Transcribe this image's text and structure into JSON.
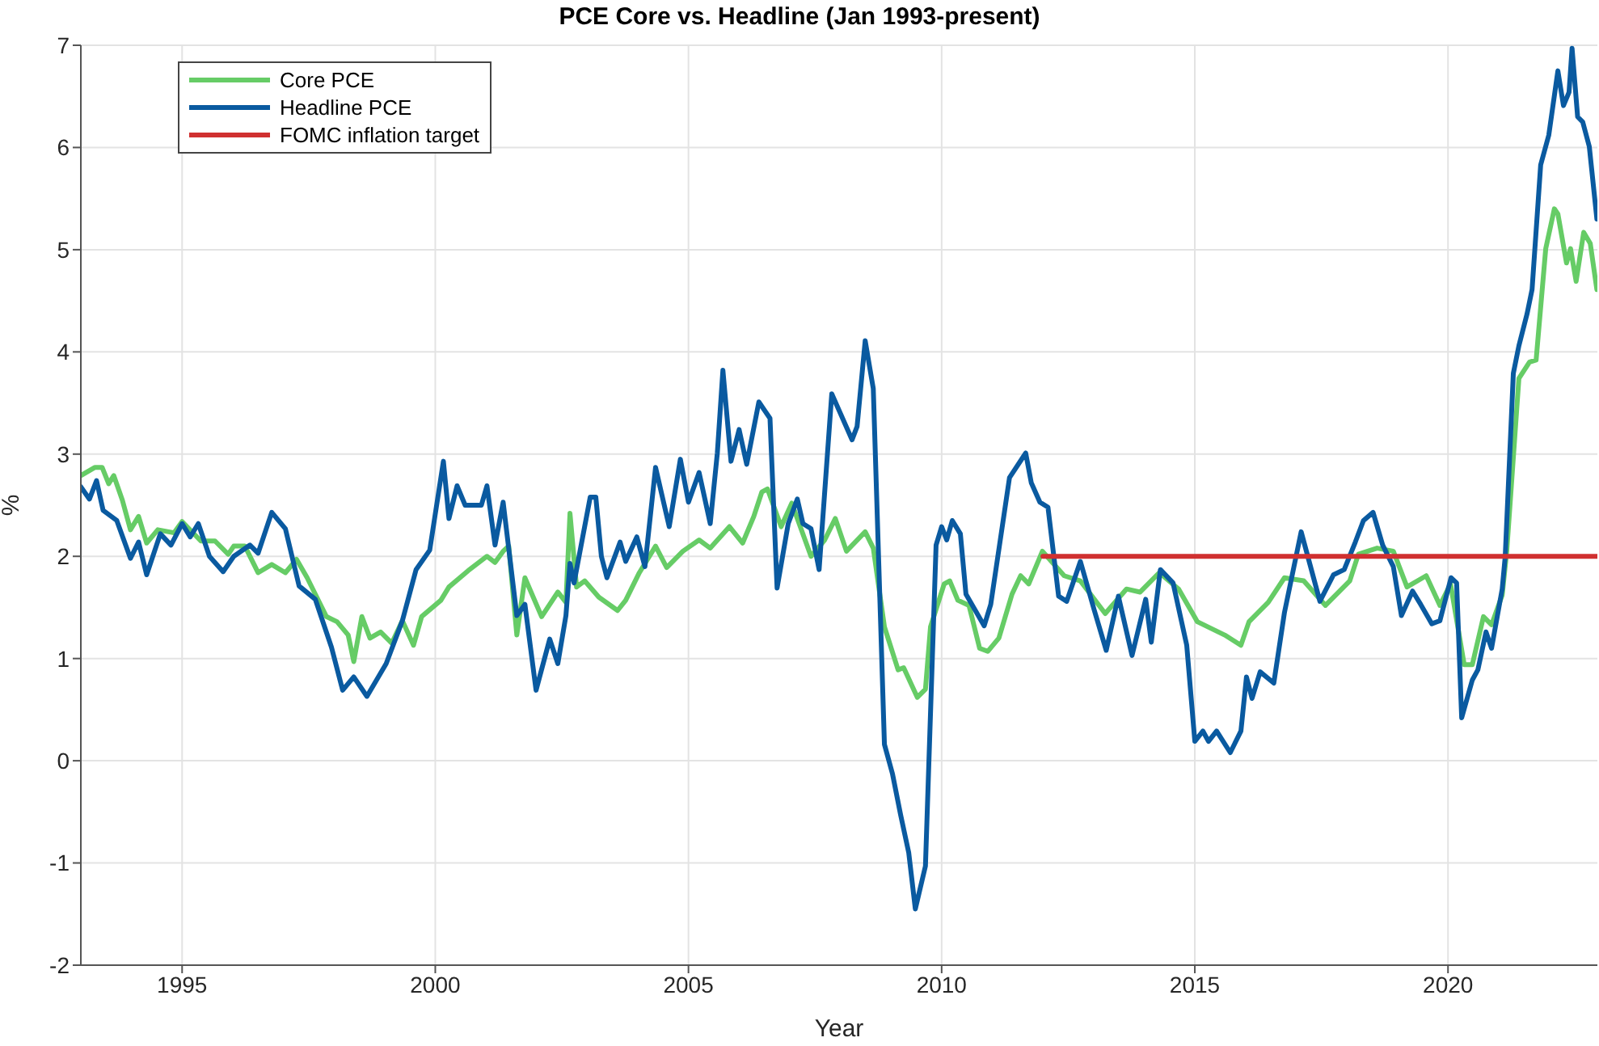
{
  "chart_data": {
    "type": "line",
    "title": "PCE Core vs. Headline (Jan 1993-present)",
    "xlabel": "Year",
    "ylabel": "%",
    "xlim": [
      1993,
      2022.95
    ],
    "xticks": [
      1995,
      2000,
      2005,
      2010,
      2015,
      2020
    ],
    "ylim": [
      -2,
      7
    ],
    "yticks": [
      -2,
      -1,
      0,
      1,
      2,
      3,
      4,
      5,
      6,
      7
    ],
    "grid": true,
    "legend": "top left",
    "marker": "none",
    "line_style": "solid",
    "series": [
      {
        "name": "Core PCE",
        "color": "#66cc66",
        "x": [
          1993.0,
          1993.28,
          1993.42,
          1993.55,
          1993.65,
          1993.82,
          1993.98,
          1994.14,
          1994.3,
          1994.52,
          1994.84,
          1995.0,
          1995.37,
          1995.65,
          1995.91,
          1996.02,
          1996.24,
          1996.5,
          1996.77,
          1997.04,
          1997.26,
          1997.47,
          1997.85,
          1998.06,
          1998.28,
          1998.39,
          1998.55,
          1998.71,
          1998.92,
          1999.14,
          1999.35,
          1999.57,
          1999.73,
          2000.11,
          2000.27,
          2000.65,
          2001.02,
          2001.18,
          2001.34,
          2001.45,
          2001.61,
          2001.77,
          2002.1,
          2002.42,
          2002.58,
          2002.66,
          2002.79,
          2002.95,
          2003.23,
          2003.6,
          2003.76,
          2004.03,
          2004.35,
          2004.57,
          2004.89,
          2005.21,
          2005.43,
          2005.81,
          2006.07,
          2006.29,
          2006.45,
          2006.56,
          2006.83,
          2007.04,
          2007.42,
          2007.69,
          2007.9,
          2008.12,
          2008.49,
          2008.65,
          2008.87,
          2009.14,
          2009.25,
          2009.52,
          2009.68,
          2009.78,
          2010.05,
          2010.16,
          2010.32,
          2010.54,
          2010.75,
          2010.91,
          2011.13,
          2011.39,
          2011.56,
          2011.72,
          2011.99,
          2012.42,
          2012.74,
          2013.23,
          2013.65,
          2013.92,
          2014.3,
          2014.68,
          2015.05,
          2015.59,
          2015.91,
          2016.07,
          2016.45,
          2016.77,
          2017.15,
          2017.58,
          2018.06,
          2018.23,
          2018.6,
          2018.92,
          2019.19,
          2019.57,
          2019.84,
          2020.05,
          2020.32,
          2020.48,
          2020.7,
          2020.86,
          2021.07,
          2021.16,
          2021.4,
          2021.61,
          2021.74,
          2021.93,
          2022.1,
          2022.17,
          2022.34,
          2022.42,
          2022.53,
          2022.68,
          2022.81,
          2022.94
        ],
        "values": [
          2.79,
          2.87,
          2.87,
          2.71,
          2.79,
          2.55,
          2.26,
          2.39,
          2.13,
          2.26,
          2.23,
          2.34,
          2.15,
          2.15,
          2.02,
          2.1,
          2.1,
          1.84,
          1.92,
          1.84,
          1.97,
          1.79,
          1.41,
          1.36,
          1.23,
          0.97,
          1.41,
          1.2,
          1.26,
          1.15,
          1.37,
          1.13,
          1.41,
          1.57,
          1.7,
          1.86,
          2.0,
          1.94,
          2.05,
          2.1,
          1.23,
          1.79,
          1.41,
          1.65,
          1.55,
          2.42,
          1.7,
          1.76,
          1.6,
          1.47,
          1.57,
          1.84,
          2.1,
          1.89,
          2.05,
          2.16,
          2.08,
          2.29,
          2.13,
          2.39,
          2.63,
          2.66,
          2.29,
          2.52,
          2.0,
          2.16,
          2.37,
          2.05,
          2.24,
          2.08,
          1.31,
          0.89,
          0.91,
          0.62,
          0.7,
          1.31,
          1.73,
          1.76,
          1.57,
          1.52,
          1.1,
          1.07,
          1.2,
          1.63,
          1.81,
          1.73,
          2.05,
          1.81,
          1.76,
          1.44,
          1.68,
          1.65,
          1.84,
          1.68,
          1.36,
          1.23,
          1.13,
          1.36,
          1.55,
          1.79,
          1.76,
          1.52,
          1.76,
          2.02,
          2.08,
          2.05,
          1.7,
          1.81,
          1.52,
          1.73,
          0.94,
          0.94,
          1.41,
          1.33,
          1.62,
          2.05,
          3.74,
          3.9,
          3.92,
          5.01,
          5.4,
          5.35,
          4.87,
          5.01,
          4.69,
          5.17,
          5.06,
          4.61
        ]
      },
      {
        "name": "Headline PCE",
        "color": "#0a5aa0",
        "x": [
          1993.0,
          1993.17,
          1993.31,
          1993.44,
          1993.71,
          1993.98,
          1994.14,
          1994.3,
          1994.57,
          1994.78,
          1995.0,
          1995.16,
          1995.32,
          1995.54,
          1995.81,
          1996.02,
          1996.34,
          1996.5,
          1996.77,
          1997.04,
          1997.31,
          1997.63,
          1997.95,
          1998.17,
          1998.39,
          1998.65,
          1999.03,
          1999.35,
          1999.62,
          1999.89,
          2000.16,
          2000.27,
          2000.43,
          2000.59,
          2000.91,
          2001.02,
          2001.18,
          2001.34,
          2001.61,
          2001.77,
          2001.99,
          2002.26,
          2002.42,
          2002.58,
          2002.66,
          2002.74,
          2003.06,
          2003.17,
          2003.28,
          2003.39,
          2003.65,
          2003.76,
          2003.98,
          2004.14,
          2004.35,
          2004.62,
          2004.84,
          2005.0,
          2005.21,
          2005.43,
          2005.57,
          2005.68,
          2005.84,
          2006.0,
          2006.15,
          2006.39,
          2006.61,
          2006.75,
          2006.97,
          2007.15,
          2007.26,
          2007.42,
          2007.58,
          2007.83,
          2008.23,
          2008.33,
          2008.49,
          2008.65,
          2008.87,
          2009.03,
          2009.19,
          2009.35,
          2009.48,
          2009.68,
          2009.89,
          2010.0,
          2010.1,
          2010.21,
          2010.37,
          2010.48,
          2010.84,
          2010.97,
          2011.34,
          2011.66,
          2011.77,
          2011.94,
          2012.1,
          2012.31,
          2012.47,
          2012.74,
          2013.01,
          2013.25,
          2013.49,
          2013.76,
          2014.03,
          2014.14,
          2014.32,
          2014.57,
          2014.84,
          2015.0,
          2015.16,
          2015.27,
          2015.43,
          2015.7,
          2015.91,
          2016.02,
          2016.13,
          2016.29,
          2016.56,
          2016.77,
          2017.1,
          2017.47,
          2017.74,
          2017.95,
          2018.17,
          2018.33,
          2018.52,
          2018.71,
          2018.92,
          2019.08,
          2019.3,
          2019.46,
          2019.68,
          2019.84,
          2020.06,
          2020.17,
          2020.27,
          2020.48,
          2020.59,
          2020.75,
          2020.86,
          2021.07,
          2021.13,
          2021.29,
          2021.4,
          2021.56,
          2021.66,
          2021.83,
          2021.99,
          2022.17,
          2022.28,
          2022.39,
          2022.45,
          2022.56,
          2022.66,
          2022.79,
          2022.94
        ],
        "values": [
          2.68,
          2.56,
          2.74,
          2.45,
          2.35,
          1.98,
          2.14,
          1.82,
          2.22,
          2.11,
          2.32,
          2.19,
          2.32,
          2.0,
          1.85,
          2.0,
          2.11,
          2.03,
          2.43,
          2.27,
          1.71,
          1.58,
          1.11,
          0.69,
          0.82,
          0.63,
          0.95,
          1.37,
          1.87,
          2.06,
          2.93,
          2.37,
          2.69,
          2.5,
          2.5,
          2.69,
          2.11,
          2.53,
          1.42,
          1.53,
          0.69,
          1.19,
          0.95,
          1.42,
          1.93,
          1.74,
          2.58,
          2.58,
          2.0,
          1.79,
          2.14,
          1.95,
          2.19,
          1.9,
          2.87,
          2.29,
          2.95,
          2.53,
          2.82,
          2.32,
          3.01,
          3.82,
          2.93,
          3.24,
          2.9,
          3.51,
          3.35,
          1.69,
          2.32,
          2.56,
          2.32,
          2.27,
          1.87,
          3.59,
          3.14,
          3.27,
          4.11,
          3.64,
          0.16,
          -0.13,
          -0.53,
          -0.9,
          -1.45,
          -1.03,
          2.11,
          2.29,
          2.16,
          2.35,
          2.22,
          1.63,
          1.32,
          1.53,
          2.77,
          3.01,
          2.72,
          2.53,
          2.48,
          1.61,
          1.56,
          1.95,
          1.48,
          1.08,
          1.61,
          1.03,
          1.58,
          1.16,
          1.87,
          1.74,
          1.13,
          0.19,
          0.29,
          0.19,
          0.29,
          0.08,
          0.29,
          0.82,
          0.61,
          0.87,
          0.76,
          1.45,
          2.24,
          1.56,
          1.82,
          1.87,
          2.14,
          2.35,
          2.43,
          2.11,
          1.9,
          1.42,
          1.66,
          1.53,
          1.34,
          1.37,
          1.79,
          1.74,
          0.42,
          0.79,
          0.89,
          1.26,
          1.1,
          1.68,
          2.0,
          3.79,
          4.06,
          4.37,
          4.61,
          5.83,
          6.12,
          6.75,
          6.41,
          6.54,
          6.97,
          6.3,
          6.25,
          6.01,
          5.3
        ]
      },
      {
        "name": "FOMC inflation target",
        "color": "#d03030",
        "x": [
          2012.0,
          2022.95
        ],
        "values": [
          2,
          2
        ]
      }
    ]
  }
}
